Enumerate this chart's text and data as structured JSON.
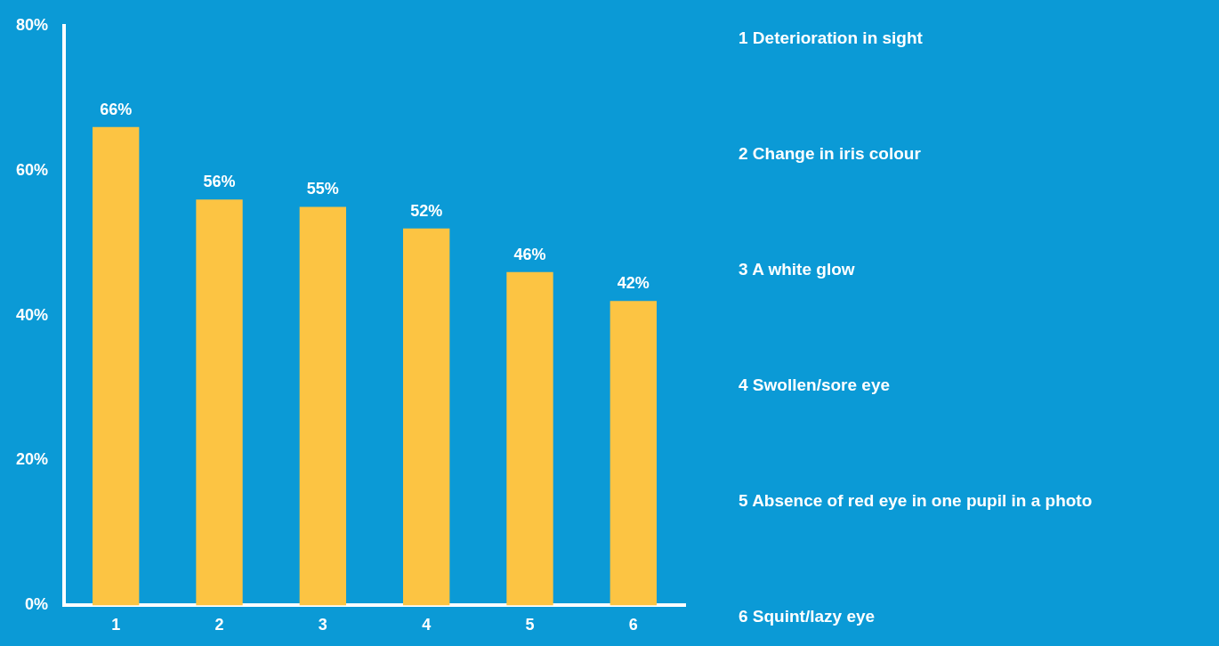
{
  "chart_data": {
    "type": "bar",
    "categories": [
      "1",
      "2",
      "3",
      "4",
      "5",
      "6"
    ],
    "values": [
      66,
      56,
      55,
      52,
      46,
      42
    ],
    "color": "#fcc443",
    "value_labels": [
      "66%",
      "56%",
      "55%",
      "52%",
      "46%",
      "42%"
    ],
    "ylim": [
      0,
      80
    ],
    "yticks": [
      {
        "value": 0,
        "label": "0%"
      },
      {
        "value": 20,
        "label": "20%"
      },
      {
        "value": 40,
        "label": "40%"
      },
      {
        "value": 60,
        "label": "60%"
      },
      {
        "value": 80,
        "label": "80%"
      }
    ],
    "annotations": [
      "1 Deterioration in sight",
      "2 Change in iris colour",
      "3 A white glow",
      "4 Swollen/sore eye",
      "5 Absence of red eye in one pupil in a photo",
      "6 Squint/lazy eye"
    ]
  }
}
